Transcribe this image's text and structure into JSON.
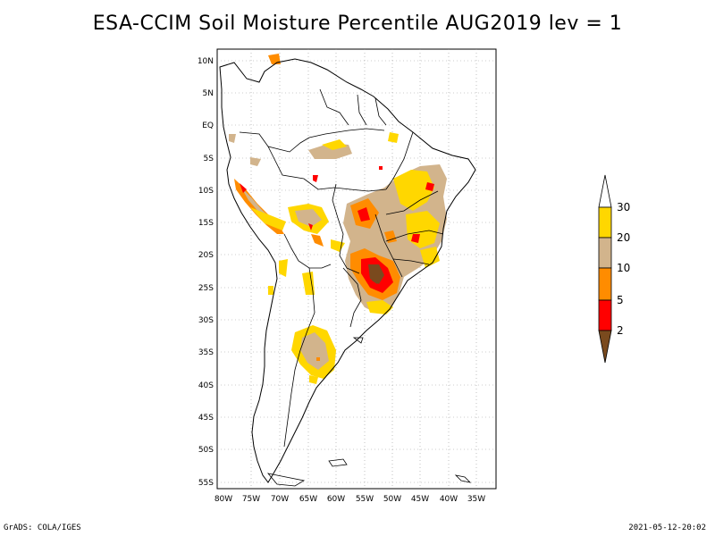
{
  "title": "ESA-CCIM Soil Moisture Percentile AUG2019 lev = 1",
  "footer": {
    "left": "GrADS: COLA/IGES",
    "right": "2021-05-12-20:02"
  },
  "axes": {
    "lon_labels": [
      "80W",
      "75W",
      "70W",
      "65W",
      "60W",
      "55W",
      "50W",
      "45W",
      "40W",
      "35W"
    ],
    "lat_labels": [
      "10N",
      "5N",
      "EQ",
      "5S",
      "10S",
      "15S",
      "20S",
      "25S",
      "30S",
      "35S",
      "40S",
      "45S",
      "50S",
      "55S"
    ]
  },
  "colorbar": {
    "labels": [
      "2",
      "5",
      "10",
      "20",
      "30"
    ],
    "colors": {
      "below_2": "#7a4a1e",
      "c2_5": "#ff0000",
      "c5_10": "#ff8c00",
      "c10_20": "#d2b48c",
      "c20_30": "#ffd700",
      "above_30": "#ffffff"
    }
  }
}
